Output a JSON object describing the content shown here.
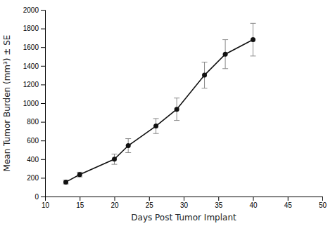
{
  "chart_data": {
    "type": "line",
    "xlabel": "Days Post Tumor Implant",
    "ylabel": "Mean Tumor Burden (mm³) ± SE",
    "x": [
      13,
      15,
      20,
      22,
      26,
      29,
      33,
      36,
      40
    ],
    "values": [
      155,
      235,
      400,
      545,
      755,
      935,
      1300,
      1525,
      1680
    ],
    "errors": [
      20,
      25,
      55,
      75,
      80,
      120,
      140,
      155,
      175
    ],
    "color": "#111111",
    "marker": "circle",
    "xlim": [
      10,
      50
    ],
    "ylim": [
      0,
      2000
    ],
    "xticks": [
      10,
      15,
      20,
      25,
      30,
      35,
      40,
      45,
      50
    ],
    "yticks": [
      0,
      200,
      400,
      600,
      800,
      1000,
      1200,
      1400,
      1600,
      1800,
      2000
    ]
  }
}
